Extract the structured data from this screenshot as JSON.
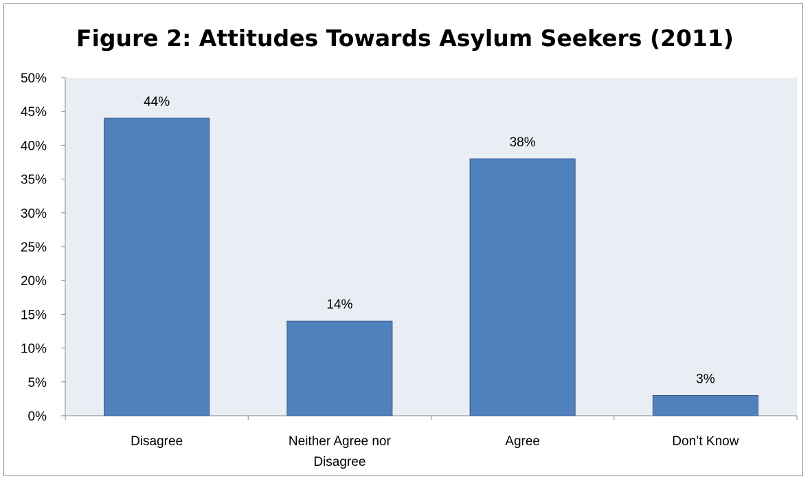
{
  "chart_data": {
    "type": "bar",
    "title": "Figure 2: Attitudes Towards Asylum Seekers (2011)",
    "categories": [
      "Disagree",
      "Neither Agree nor Disagree",
      "Agree",
      "Don’t Know"
    ],
    "category_lines": [
      [
        "Disagree"
      ],
      [
        "Neither Agree nor",
        "Disagree"
      ],
      [
        "Agree"
      ],
      [
        "Don’t Know"
      ]
    ],
    "values": [
      44,
      14,
      38,
      3
    ],
    "data_labels": [
      "44%",
      "14%",
      "38%",
      "3%"
    ],
    "xlabel": "",
    "ylabel": "",
    "ylim": [
      0,
      50
    ],
    "yticks": [
      0,
      5,
      10,
      15,
      20,
      25,
      30,
      35,
      40,
      45,
      50
    ],
    "ytick_labels": [
      "0%",
      "5%",
      "10%",
      "15%",
      "20%",
      "25%",
      "30%",
      "35%",
      "40%",
      "45%",
      "50%"
    ],
    "grid": false,
    "legend": "none",
    "bar_color": "#4f81bd",
    "bar_edge_color": "#385d8a",
    "plot_background": "#e9edf4"
  }
}
